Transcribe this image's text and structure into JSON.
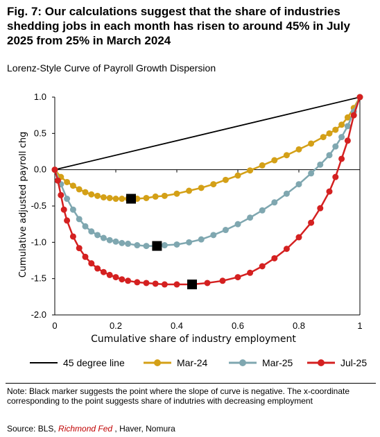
{
  "title": "Fig. 7: Our calculations suggest that the share of industries shedding jobs in each month has risen to around 45% in July 2025 from 25% in March 2024",
  "subtitle": "Lorenz-Style Curve of Payroll Growth Dispersion",
  "note": "Note: Black marker suggests the point where the slope of curve is negative. The x-coordinate corresponding to the point suggests share of indutries with decreasing employment",
  "source": {
    "prefix": "Source: BLS, ",
    "highlight": "Richmond Fed",
    "suffix": " , Haver, Nomura"
  },
  "chart_data": {
    "type": "line",
    "xlabel": "Cumulative share of industry employment",
    "ylabel": "Cumulative adjusted payroll chg",
    "xlim": [
      0,
      1
    ],
    "ylim": [
      -2.0,
      1.0
    ],
    "x_ticks": [
      "0",
      "0.2",
      "0.4",
      "0.6",
      "0.8",
      "1"
    ],
    "x_tick_values": [
      0,
      0.2,
      0.4,
      0.6,
      0.8,
      1
    ],
    "y_ticks": [
      "1.0",
      "0.5",
      "0.0",
      "-0.5",
      "-1.0",
      "-1.5",
      "-2.0"
    ],
    "y_tick_values": [
      1.0,
      0.5,
      0.0,
      -0.5,
      -1.0,
      -1.5,
      -2.0
    ],
    "grid": false,
    "legend_position": "bottom",
    "series": [
      {
        "name": "45 degree line",
        "color": "#000000",
        "marker": "none",
        "x": [
          0,
          1
        ],
        "y": [
          0,
          1
        ]
      },
      {
        "name": "Mar-24",
        "color": "#d4a017",
        "marker": "circle",
        "x": [
          0,
          0.02,
          0.04,
          0.06,
          0.08,
          0.1,
          0.12,
          0.14,
          0.16,
          0.18,
          0.2,
          0.22,
          0.24,
          0.25,
          0.27,
          0.3,
          0.33,
          0.36,
          0.4,
          0.44,
          0.48,
          0.52,
          0.56,
          0.6,
          0.64,
          0.68,
          0.72,
          0.76,
          0.8,
          0.84,
          0.88,
          0.9,
          0.92,
          0.94,
          0.96,
          0.98,
          1.0
        ],
        "y": [
          0,
          -0.1,
          -0.17,
          -0.22,
          -0.27,
          -0.31,
          -0.34,
          -0.36,
          -0.38,
          -0.39,
          -0.4,
          -0.4,
          -0.4,
          -0.4,
          -0.4,
          -0.39,
          -0.37,
          -0.36,
          -0.33,
          -0.29,
          -0.25,
          -0.2,
          -0.14,
          -0.08,
          -0.01,
          0.06,
          0.13,
          0.2,
          0.28,
          0.36,
          0.45,
          0.5,
          0.55,
          0.62,
          0.72,
          0.85,
          1.0
        ]
      },
      {
        "name": "Mar-25",
        "color": "#7fa7b0",
        "marker": "circle",
        "x": [
          0,
          0.02,
          0.04,
          0.06,
          0.08,
          0.1,
          0.12,
          0.14,
          0.16,
          0.18,
          0.2,
          0.22,
          0.24,
          0.27,
          0.3,
          0.33,
          0.36,
          0.4,
          0.44,
          0.48,
          0.52,
          0.56,
          0.6,
          0.64,
          0.68,
          0.72,
          0.76,
          0.8,
          0.84,
          0.87,
          0.9,
          0.92,
          0.94,
          0.96,
          0.98,
          1.0
        ],
        "y": [
          0,
          -0.2,
          -0.4,
          -0.55,
          -0.68,
          -0.78,
          -0.85,
          -0.9,
          -0.94,
          -0.97,
          -0.99,
          -1.01,
          -1.02,
          -1.04,
          -1.05,
          -1.05,
          -1.04,
          -1.03,
          -1.0,
          -0.96,
          -0.9,
          -0.83,
          -0.75,
          -0.66,
          -0.56,
          -0.45,
          -0.33,
          -0.2,
          -0.05,
          0.07,
          0.2,
          0.32,
          0.45,
          0.6,
          0.8,
          1.0
        ]
      },
      {
        "name": "Jul-25",
        "color": "#d42020",
        "marker": "circle",
        "x": [
          0,
          0.01,
          0.02,
          0.03,
          0.04,
          0.06,
          0.08,
          0.1,
          0.12,
          0.14,
          0.16,
          0.18,
          0.2,
          0.22,
          0.24,
          0.27,
          0.3,
          0.33,
          0.36,
          0.4,
          0.45,
          0.5,
          0.55,
          0.6,
          0.64,
          0.68,
          0.72,
          0.76,
          0.8,
          0.84,
          0.87,
          0.9,
          0.92,
          0.94,
          0.96,
          0.98,
          1.0
        ],
        "y": [
          0,
          -0.15,
          -0.35,
          -0.55,
          -0.7,
          -0.92,
          -1.08,
          -1.2,
          -1.29,
          -1.36,
          -1.41,
          -1.45,
          -1.48,
          -1.51,
          -1.53,
          -1.55,
          -1.56,
          -1.57,
          -1.58,
          -1.58,
          -1.58,
          -1.56,
          -1.53,
          -1.48,
          -1.42,
          -1.33,
          -1.22,
          -1.09,
          -0.93,
          -0.73,
          -0.53,
          -0.3,
          -0.1,
          0.15,
          0.4,
          0.75,
          1.0
        ]
      }
    ],
    "black_markers": [
      {
        "series": "Mar-24",
        "x": 0.25,
        "y": -0.4
      },
      {
        "series": "Mar-25",
        "x": 0.335,
        "y": -1.05
      },
      {
        "series": "Jul-25",
        "x": 0.45,
        "y": -1.58
      }
    ]
  }
}
